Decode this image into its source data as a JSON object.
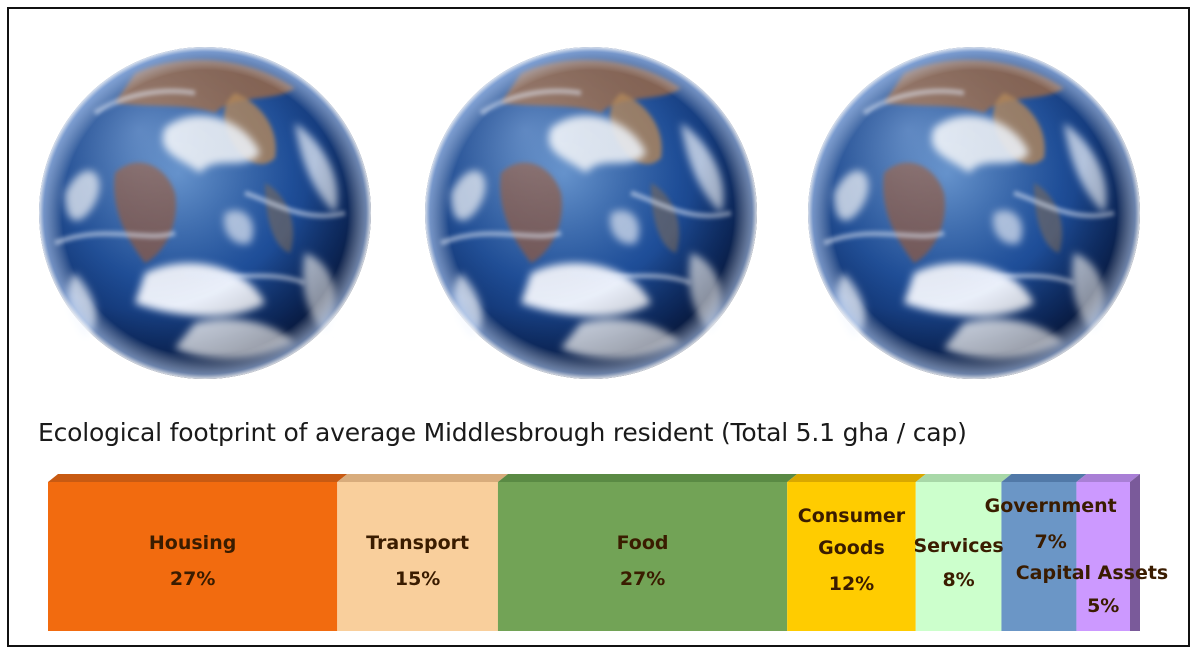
{
  "chart_data": {
    "type": "bar",
    "subtype": "stacked-100-horizontal-3d",
    "title": "Ecological footprint of average Middlesbrough resident (Total 5.1 gha / cap)",
    "xlabel": "",
    "ylabel": "",
    "total": "5.1 gha / cap",
    "legend": "none",
    "grid": false,
    "categories": [
      "Housing",
      "Transport",
      "Food",
      "Consumer Goods",
      "Services",
      "Government",
      "Capital Assets"
    ],
    "values": [
      27,
      15,
      27,
      12,
      8,
      7,
      5
    ],
    "value_labels": [
      "27%",
      "15%",
      "27%",
      "12%",
      "8%",
      "7%",
      "5%"
    ],
    "colors": [
      "#f26b0f",
      "#f9cf9c",
      "#72a356",
      "#ffcc00",
      "#ccffcc",
      "#6b96c6",
      "#cc99ff"
    ],
    "top_colors": [
      "#c85a12",
      "#d8ac7c",
      "#5a8a44",
      "#d9a800",
      "#a8d8a8",
      "#5179a8",
      "#a97fd6"
    ],
    "side_color": "#7a5a9a",
    "label_color": "#3a1c00"
  },
  "images": [
    "earth-globe",
    "earth-globe",
    "earth-globe"
  ]
}
